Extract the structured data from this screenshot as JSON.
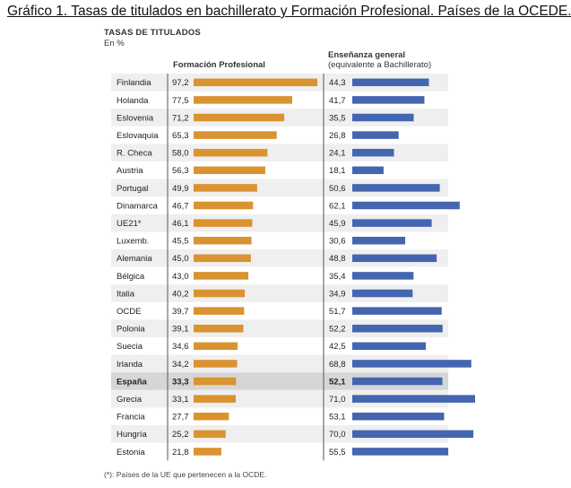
{
  "title": "Gráfico 1. Tasas de titulados en bachillerato y Formación Profesional. Países de la OCEDE.",
  "chart_data": {
    "type": "bar",
    "title": "TASAS DE TITULADOS",
    "subtitle": "En %",
    "categories": [
      "Finlandia",
      "Holanda",
      "Eslovenia",
      "Eslovaquia",
      "R. Checa",
      "Austria",
      "Portugal",
      "Dinamarca",
      "UE21*",
      "Luxemb.",
      "Alemania",
      "Bélgica",
      "Italia",
      "OCDE",
      "Polonia",
      "Suecia",
      "Irlanda",
      "España",
      "Grecia",
      "Francia",
      "Hungría",
      "Estonia"
    ],
    "series": [
      {
        "name": "Formación Profesional",
        "color": "#d99330",
        "values": [
          97.2,
          77.5,
          71.2,
          65.3,
          58.0,
          56.3,
          49.9,
          46.7,
          46.1,
          45.5,
          45.0,
          43.0,
          40.2,
          39.7,
          39.1,
          34.6,
          34.2,
          33.3,
          33.1,
          27.7,
          25.2,
          21.8
        ],
        "labels": [
          "97,2",
          "77,5",
          "71,2",
          "65,3",
          "58,0",
          "56,3",
          "49,9",
          "46,7",
          "46,1",
          "45,5",
          "45,0",
          "43,0",
          "40,2",
          "39,7",
          "39,1",
          "34,6",
          "34,2",
          "33,3",
          "33,1",
          "27,7",
          "25,2",
          "21,8"
        ]
      },
      {
        "name": "Enseñanza general",
        "name_sub": "(equivalente a Bachillerato)",
        "color": "#4466b0",
        "values": [
          44.3,
          41.7,
          35.5,
          26.8,
          24.1,
          18.1,
          50.6,
          62.1,
          45.9,
          30.6,
          48.8,
          35.4,
          34.9,
          51.7,
          52.2,
          42.5,
          68.8,
          52.1,
          71.0,
          53.1,
          70.0,
          55.5
        ],
        "labels": [
          "44,3",
          "41,7",
          "35,5",
          "26,8",
          "24,1",
          "18,1",
          "50,6",
          "62,1",
          "45,9",
          "30,6",
          "48,8",
          "35,4",
          "34,9",
          "51,7",
          "52,2",
          "42,5",
          "68,8",
          "52,1",
          "71,0",
          "53,1",
          "70,0",
          "55,5"
        ]
      }
    ],
    "highlight": "España",
    "footnote": "(*): Países de la UE que pertenecen a la OCDE.",
    "colors": {
      "stripe": "#efefef",
      "highlight": "#d6d6d6",
      "divider": "#555555"
    }
  }
}
